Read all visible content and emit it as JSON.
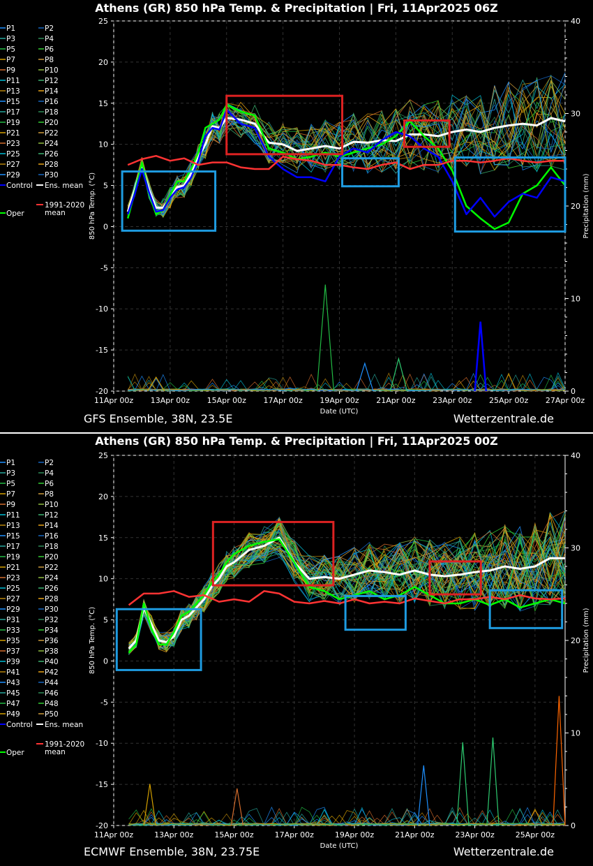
{
  "charts": [
    {
      "id": "gfs",
      "title": "Athens  (GR)  850 hPa Temp. & Precipitation | Fri, 11Apr2025 06Z",
      "footer_left": "GFS Ensemble, 38N, 23.5E",
      "footer_right": "Wetterzentrale.de",
      "ylabel": "850 hPa Temp. (°C)",
      "y2label": "Precipitation (mm)",
      "xlabel": "Date (UTC)",
      "legend": [
        "P1",
        "P2",
        "P3",
        "P4",
        "P5",
        "P6",
        "P7",
        "P8",
        "P9",
        "P10",
        "P11",
        "P12",
        "P13",
        "P14",
        "P15",
        "P16",
        "P17",
        "P18",
        "P19",
        "P20",
        "P21",
        "P22",
        "P23",
        "P24",
        "P25",
        "P26",
        "P27",
        "P28",
        "P29",
        "P30"
      ],
      "legend_special": {
        "control": "Control",
        "mean": "Ens. mean",
        "oper": "Oper",
        "clim": "1991-2020",
        "clim2": "mean"
      },
      "xticks": [
        "11Apr 00z",
        "13Apr 00z",
        "15Apr 00z",
        "17Apr 00z",
        "19Apr 00z",
        "21Apr 00z",
        "23Apr 00z",
        "25Apr 00z",
        "27Apr 00z"
      ],
      "yticks": [
        "25",
        "20",
        "15",
        "10",
        "5",
        "0",
        "-5",
        "-10",
        "-15",
        "-20"
      ],
      "y2ticks": [
        "40",
        "30",
        "20",
        "10",
        "0"
      ]
    },
    {
      "id": "ecmwf",
      "title": "Athens  (GR)  850 hPa Temp. & Precipitation | Fri, 11Apr2025 00Z",
      "footer_left": "ECMWF Ensemble, 38N, 23.75E",
      "footer_right": "Wetterzentrale.de",
      "ylabel": "850 hPa Temp. (°C)",
      "y2label": "Precipitation (mm)",
      "xlabel": "Date (UTC)",
      "legend": [
        "P1",
        "P2",
        "P3",
        "P4",
        "P5",
        "P6",
        "P7",
        "P8",
        "P9",
        "P10",
        "P11",
        "P12",
        "P13",
        "P14",
        "P15",
        "P16",
        "P17",
        "P18",
        "P19",
        "P20",
        "P21",
        "P22",
        "P23",
        "P24",
        "P25",
        "P26",
        "P27",
        "P28",
        "P29",
        "P30",
        "P31",
        "P32",
        "P33",
        "P34",
        "P35",
        "P36",
        "P37",
        "P38",
        "P39",
        "P40",
        "P41",
        "P42",
        "P43",
        "P44",
        "P45",
        "P46",
        "P47",
        "P48",
        "P49",
        "P50"
      ],
      "legend_special": {
        "control": "Control",
        "mean": "Ens. mean",
        "oper": "Oper",
        "clim": "1991-2020",
        "clim2": "mean"
      },
      "xticks": [
        "11Apr 00z",
        "13Apr 00z",
        "15Apr 00z",
        "17Apr 00z",
        "19Apr 00z",
        "21Apr 00z",
        "23Apr 00z",
        "25Apr 00z"
      ],
      "yticks": [
        "25",
        "20",
        "15",
        "10",
        "5",
        "0",
        "-5",
        "-10",
        "-15",
        "-20"
      ],
      "y2ticks": [
        "40",
        "30",
        "20",
        "10",
        "0"
      ]
    }
  ],
  "chart_data": [
    {
      "type": "line",
      "x_unit": "days since 11Apr 00z",
      "ylim": [
        -20,
        25
      ],
      "y2lim": [
        0,
        40
      ],
      "xlim": [
        0,
        16
      ],
      "grid": true,
      "legend_placement": "left",
      "series": [
        {
          "name": "Ens. mean",
          "color": "#ffffff",
          "x": [
            0.5,
            0.75,
            1,
            1.25,
            1.5,
            1.75,
            2,
            2.25,
            2.5,
            2.75,
            3,
            3.25,
            3.5,
            3.75,
            4,
            4.5,
            5,
            5.5,
            6,
            6.5,
            7,
            7.5,
            8,
            8.5,
            9,
            9.5,
            10,
            10.5,
            11,
            11.5,
            12,
            12.5,
            13,
            13.5,
            14,
            14.5,
            15,
            15.5,
            16
          ],
          "y": [
            1.8,
            4.5,
            7.5,
            4.5,
            2.3,
            2.3,
            3.5,
            4.8,
            5.0,
            6.5,
            8.5,
            10,
            12.2,
            12.0,
            13.2,
            13.0,
            12.5,
            10.2,
            10.0,
            9.2,
            9.5,
            9.8,
            9.5,
            10.3,
            10.2,
            10.5,
            10.4,
            11.2,
            11.2,
            11.0,
            11.5,
            11.8,
            11.5,
            12.0,
            12.3,
            12.5,
            12.3,
            13.2,
            12.8
          ]
        },
        {
          "name": "Oper",
          "color": "#00ff00",
          "x": [
            0.5,
            0.75,
            1,
            1.25,
            1.5,
            1.75,
            2,
            2.25,
            2.5,
            2.75,
            3,
            3.25,
            3.5,
            3.75,
            4,
            4.5,
            5,
            5.5,
            6,
            6.5,
            7,
            7.5,
            8,
            8.5,
            9,
            9.5,
            10,
            10.5,
            11,
            11.5,
            12,
            12.5,
            13,
            13.5,
            14,
            14.5,
            15,
            15.5,
            16
          ],
          "y": [
            1.0,
            4.2,
            7.8,
            4.0,
            1.5,
            2.0,
            3.8,
            5.5,
            5.5,
            7.0,
            9.0,
            12,
            12.5,
            13.0,
            14.8,
            14.0,
            13.5,
            9.5,
            9.0,
            8.2,
            8.5,
            9.0,
            8.5,
            9.0,
            9.5,
            10.0,
            11.0,
            12.8,
            11.0,
            9.5,
            6.8,
            2.5,
            1.0,
            -0.3,
            0.5,
            4.0,
            5.0,
            7.2,
            5.0
          ]
        },
        {
          "name": "Control",
          "color": "#0000ff",
          "x": [
            0.5,
            0.75,
            1,
            1.25,
            1.5,
            1.75,
            2,
            2.25,
            2.5,
            2.75,
            3,
            3.25,
            3.5,
            3.75,
            4,
            4.5,
            5,
            5.5,
            6,
            6.5,
            7,
            7.5,
            8,
            8.5,
            9,
            9.5,
            10,
            10.5,
            11,
            11.5,
            12,
            12.5,
            13,
            13.5,
            14,
            14.5,
            15,
            15.5,
            16
          ],
          "y": [
            1.5,
            4.0,
            7.0,
            4.2,
            1.8,
            2.0,
            3.5,
            4.5,
            4.8,
            6.0,
            8.0,
            11,
            12.0,
            11.8,
            14.2,
            12.5,
            12.0,
            8.5,
            7.0,
            6.0,
            6.0,
            5.5,
            8.5,
            9.5,
            9.0,
            10.5,
            11.5,
            11.0,
            9.5,
            8.5,
            5.5,
            1.5,
            3.5,
            1.2,
            3.0,
            4.0,
            3.5,
            6.0,
            5.5
          ]
        },
        {
          "name": "1991-2020 mean",
          "color": "#ff3333",
          "x": [
            0.5,
            1,
            1.5,
            2,
            2.5,
            3,
            3.5,
            4,
            4.5,
            5,
            5.5,
            6,
            6.5,
            7,
            7.5,
            8,
            8.5,
            9,
            9.5,
            10,
            10.5,
            11,
            11.5,
            12,
            12.5,
            13,
            13.5,
            14,
            14.5,
            15,
            15.5,
            16
          ],
          "y": [
            7.5,
            8.2,
            8.6,
            8.0,
            8.3,
            7.5,
            7.8,
            7.8,
            7.2,
            7.0,
            7.0,
            8.5,
            8.2,
            8.0,
            7.5,
            7.5,
            7.2,
            7.0,
            7.5,
            7.8,
            7.0,
            7.5,
            7.5,
            8.0,
            8.0,
            7.8,
            8.0,
            8.3,
            8.0,
            7.8,
            8.0,
            8.0
          ]
        }
      ],
      "precip_series": [
        {
          "name": "Control",
          "color": "#0000ff",
          "x": [
            12.8,
            13.0,
            13.2
          ],
          "y": [
            0,
            7.5,
            0
          ]
        },
        {
          "name": "P10",
          "color": "#22bb44",
          "x": [
            7.2,
            7.5,
            7.8
          ],
          "y": [
            0,
            11.5,
            0
          ]
        },
        {
          "name": "P14",
          "color": "#d4a000",
          "x": [
            1.2,
            1.5,
            1.8
          ],
          "y": [
            0,
            1.5,
            0
          ]
        },
        {
          "name": "P22",
          "color": "#1e90ff",
          "x": [
            8.6,
            8.9,
            9.2
          ],
          "y": [
            0,
            3.0,
            0
          ]
        },
        {
          "name": "P25",
          "color": "#2ecc71",
          "x": [
            9.8,
            10.1,
            10.4
          ],
          "y": [
            0,
            3.5,
            0
          ]
        }
      ],
      "highlight_boxes": [
        {
          "color": "#1e9be0",
          "x": [
            0.3,
            3.6
          ],
          "y": [
            -0.5,
            6.7
          ]
        },
        {
          "color": "#dd2222",
          "x": [
            4.0,
            8.1
          ],
          "y": [
            8.8,
            15.9
          ]
        },
        {
          "color": "#1e9be0",
          "x": [
            8.1,
            10.1
          ],
          "y": [
            4.9,
            8.3
          ]
        },
        {
          "color": "#dd2222",
          "x": [
            10.3,
            11.9
          ],
          "y": [
            9.7,
            12.9
          ]
        },
        {
          "color": "#1e9be0",
          "x": [
            12.1,
            16.0
          ],
          "y": [
            -0.6,
            8.4
          ]
        }
      ]
    },
    {
      "type": "line",
      "x_unit": "days since 11Apr 00z",
      "ylim": [
        -20,
        25
      ],
      "y2lim": [
        0,
        40
      ],
      "xlim": [
        0,
        15
      ],
      "grid": true,
      "legend_placement": "left",
      "series": [
        {
          "name": "Ens. mean",
          "color": "#ffffff",
          "x": [
            0.5,
            0.75,
            1,
            1.25,
            1.5,
            1.75,
            2,
            2.25,
            2.5,
            2.75,
            3,
            3.25,
            3.5,
            3.75,
            4,
            4.5,
            5,
            5.5,
            6,
            6.5,
            7,
            7.5,
            8,
            8.5,
            9,
            9.5,
            10,
            10.5,
            11,
            11.5,
            12,
            12.5,
            13,
            13.5,
            14,
            14.5,
            15
          ],
          "y": [
            1.5,
            2.5,
            6.5,
            4.5,
            2.5,
            2.3,
            3.0,
            5.0,
            5.5,
            6.5,
            7.5,
            9.0,
            10.0,
            11.5,
            12.0,
            13.5,
            14.0,
            15.0,
            12.0,
            10.0,
            10.2,
            10.0,
            10.5,
            11.0,
            10.8,
            10.5,
            11.0,
            10.5,
            10.3,
            10.5,
            10.8,
            11.0,
            11.5,
            11.2,
            11.5,
            12.5,
            12.5
          ]
        },
        {
          "name": "Oper",
          "color": "#00ff00",
          "x": [
            0.5,
            0.75,
            1,
            1.25,
            1.5,
            1.75,
            2,
            2.25,
            2.5,
            2.75,
            3,
            3.25,
            3.5,
            3.75,
            4,
            4.5,
            5,
            5.5,
            6,
            6.5,
            7,
            7.5,
            8,
            8.5,
            9,
            9.5,
            10,
            10.5,
            11,
            11.5,
            12,
            12.5,
            13,
            13.5,
            14,
            14.5,
            15
          ],
          "y": [
            1.0,
            2.0,
            7.0,
            4.0,
            2.0,
            2.0,
            3.5,
            5.5,
            6.0,
            7.0,
            8.0,
            9.5,
            10.5,
            12.0,
            13.0,
            14.0,
            14.5,
            14.8,
            12.0,
            9.0,
            8.5,
            7.5,
            8.0,
            8.5,
            7.5,
            8.0,
            9.0,
            8.0,
            7.0,
            7.0,
            7.5,
            6.8,
            7.5,
            6.5,
            7.0,
            7.5,
            7.0
          ]
        },
        {
          "name": "1991-2020 mean",
          "color": "#ff3333",
          "x": [
            0.5,
            1,
            1.5,
            2,
            2.5,
            3,
            3.5,
            4,
            4.5,
            5,
            5.5,
            6,
            6.5,
            7,
            7.5,
            8,
            8.5,
            9,
            9.5,
            10,
            10.5,
            11,
            11.5,
            12,
            12.5,
            13,
            13.5,
            14,
            14.5,
            15
          ],
          "y": [
            6.8,
            8.2,
            8.2,
            8.5,
            7.8,
            8.0,
            7.2,
            7.5,
            7.2,
            8.5,
            8.2,
            7.2,
            7.0,
            7.3,
            7.0,
            7.5,
            7.0,
            7.2,
            7.0,
            7.6,
            7.3,
            7.0,
            7.5,
            7.5,
            7.8,
            7.5,
            8.0,
            7.6,
            7.5,
            7.6
          ]
        }
      ],
      "precip_series": [
        {
          "name": "P36",
          "color": "#ff6600",
          "x": [
            14.6,
            14.8,
            15.0
          ],
          "y": [
            0,
            14.0,
            0
          ]
        },
        {
          "name": "P27",
          "color": "#2ecc71",
          "x": [
            12.4,
            12.6,
            12.8
          ],
          "y": [
            0,
            9.5,
            0
          ]
        },
        {
          "name": "P14",
          "color": "#d4a000",
          "x": [
            1.0,
            1.2,
            1.4
          ],
          "y": [
            0,
            4.5,
            0
          ]
        },
        {
          "name": "P16",
          "color": "#d36c2c",
          "x": [
            3.9,
            4.1,
            4.3
          ],
          "y": [
            0,
            4.0,
            0
          ]
        },
        {
          "name": "P22",
          "color": "#1e90ff",
          "x": [
            10.1,
            10.3,
            10.5
          ],
          "y": [
            0,
            6.5,
            0
          ]
        },
        {
          "name": "P26",
          "color": "#2ecc71",
          "x": [
            11.4,
            11.6,
            11.8
          ],
          "y": [
            0,
            9.0,
            0
          ]
        }
      ],
      "highlight_boxes": [
        {
          "color": "#1e9be0",
          "x": [
            0.1,
            2.9
          ],
          "y": [
            -1.1,
            6.3
          ]
        },
        {
          "color": "#dd2222",
          "x": [
            3.3,
            7.3
          ],
          "y": [
            9.2,
            16.9
          ]
        },
        {
          "color": "#1e9be0",
          "x": [
            7.7,
            9.7
          ],
          "y": [
            3.8,
            7.9
          ]
        },
        {
          "color": "#dd2222",
          "x": [
            10.5,
            12.2
          ],
          "y": [
            8.1,
            12.1
          ]
        },
        {
          "color": "#1e9be0",
          "x": [
            12.5,
            14.9
          ],
          "y": [
            4.0,
            8.6
          ]
        }
      ]
    }
  ]
}
